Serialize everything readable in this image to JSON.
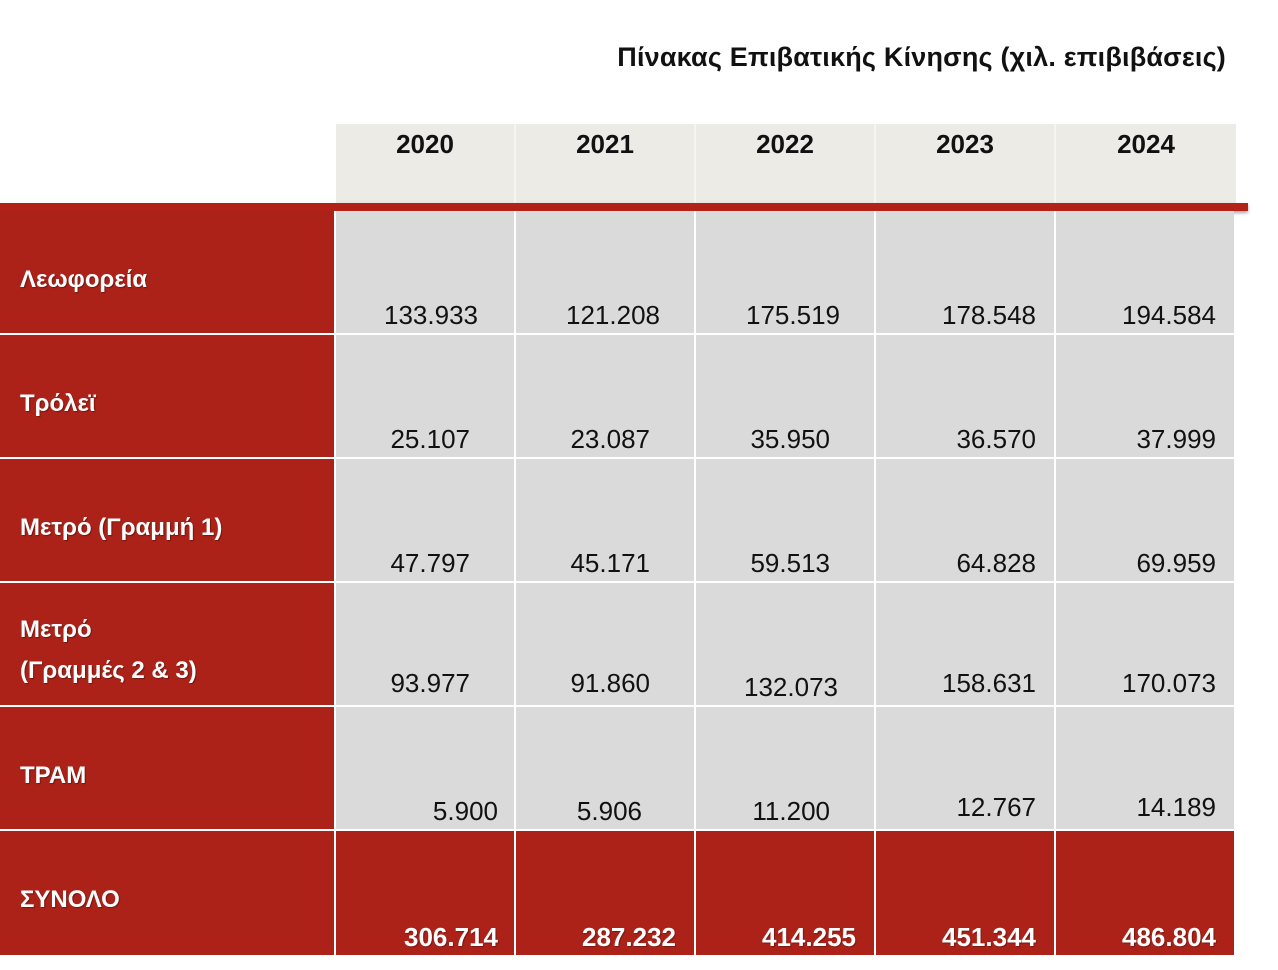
{
  "title": "Πίνακας  Επιβατικής Κίνησης (χιλ. επιβιβάσεις)",
  "years": [
    "2020",
    "2021",
    "2022",
    "2023",
    "2024"
  ],
  "rows": [
    {
      "label": "Λεωφορεία",
      "values": [
        "133.933",
        "121.208",
        "175.519",
        "178.548",
        "194.584"
      ]
    },
    {
      "label": "Τρόλεϊ",
      "values": [
        "25.107",
        "23.087",
        "35.950",
        "36.570",
        "37.999"
      ]
    },
    {
      "label": "Μετρό (Γραμμή 1)",
      "values": [
        "47.797",
        "45.171",
        "59.513",
        "64.828",
        "69.959"
      ]
    },
    {
      "label_line1": "Μετρό",
      "label_line2": "(Γραμμές 2 & 3)",
      "values": [
        "93.977",
        "91.860",
        "132.073",
        "158.631",
        "170.073"
      ]
    },
    {
      "label": "ΤΡΑΜ",
      "values": [
        "5.900",
        "5.906",
        "11.200",
        "12.767",
        "14.189"
      ]
    }
  ],
  "total": {
    "label": "ΣΥΝΟΛΟ",
    "values": [
      "306.714",
      "287.232",
      "414.255",
      "451.344",
      "486.804"
    ]
  },
  "colors": {
    "accent_red": "#ad2218",
    "cell_gray": "#dadada",
    "header_beige": "#ecebe6"
  }
}
